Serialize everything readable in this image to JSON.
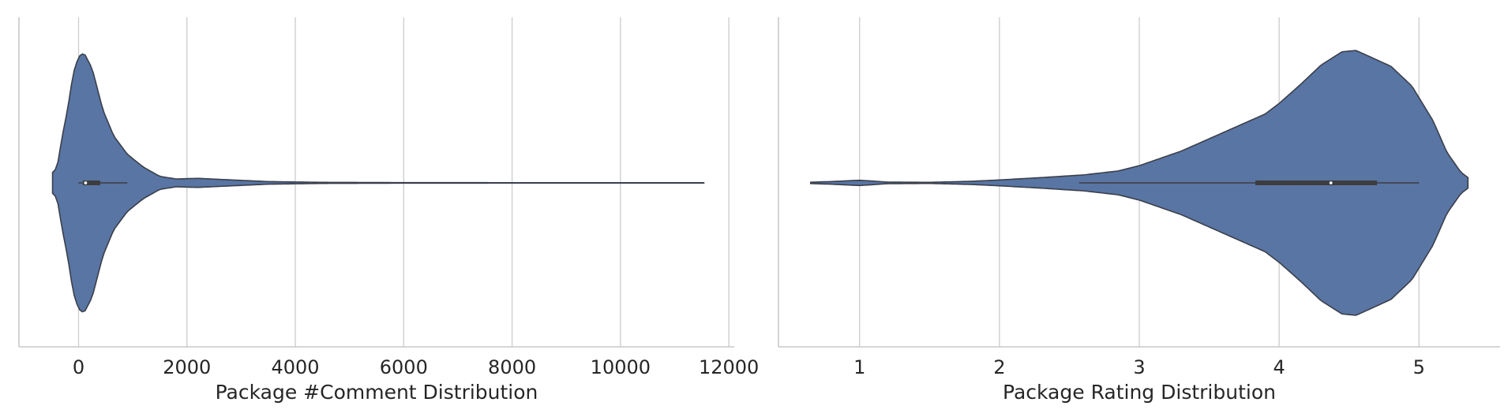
{
  "chart_data": [
    {
      "type": "violin",
      "orientation": "horizontal",
      "xlabel": "Package #Comment Distribution",
      "ylabel": "",
      "xlim": [
        -1100,
        12100
      ],
      "xticks": [
        0,
        2000,
        4000,
        6000,
        8000,
        10000,
        12000
      ],
      "xtick_labels": [
        "0",
        "2000",
        "4000",
        "6000",
        "8000",
        "10000",
        "12000"
      ],
      "grid": "vertical",
      "color": "#5875a4",
      "box": {
        "min": 0,
        "q1": 80,
        "median": 130,
        "q3": 400,
        "whisker_high": 900
      },
      "data_range": [
        -480,
        11540
      ],
      "density_profile": [
        [
          -480,
          0.08
        ],
        [
          -440,
          0.09
        ],
        [
          -380,
          0.16
        ],
        [
          -300,
          0.36
        ],
        [
          -200,
          0.57
        ],
        [
          -100,
          0.84
        ],
        [
          0,
          0.97
        ],
        [
          100,
          1.0
        ],
        [
          250,
          0.88
        ],
        [
          450,
          0.56
        ],
        [
          650,
          0.36
        ],
        [
          900,
          0.22
        ],
        [
          1200,
          0.12
        ],
        [
          1500,
          0.05
        ],
        [
          1800,
          0.03
        ],
        [
          2200,
          0.035
        ],
        [
          2700,
          0.025
        ],
        [
          3500,
          0.01
        ],
        [
          4500,
          0.004
        ],
        [
          6000,
          0.002
        ],
        [
          8000,
          0.0015
        ],
        [
          10000,
          0.0012
        ],
        [
          11540,
          0.0012
        ]
      ]
    },
    {
      "type": "violin",
      "orientation": "horizontal",
      "xlabel": "Package Rating Distribution",
      "ylabel": "",
      "xlim": [
        0.42,
        5.58
      ],
      "xticks": [
        1,
        2,
        3,
        4,
        5
      ],
      "xtick_labels": [
        "1",
        "2",
        "3",
        "4",
        "5"
      ],
      "grid": "vertical",
      "color": "#5875a4",
      "box": {
        "whisker_low": 2.57,
        "q1": 3.83,
        "median": 4.37,
        "q3": 4.7,
        "whisker_high": 5.0
      },
      "data_range": [
        0.65,
        5.35
      ],
      "density_profile": [
        [
          0.65,
          0.005
        ],
        [
          0.8,
          0.01
        ],
        [
          1.0,
          0.02
        ],
        [
          1.2,
          0.006
        ],
        [
          1.5,
          0.004
        ],
        [
          1.8,
          0.012
        ],
        [
          2.0,
          0.022
        ],
        [
          2.3,
          0.04
        ],
        [
          2.6,
          0.06
        ],
        [
          2.85,
          0.09
        ],
        [
          3.0,
          0.13
        ],
        [
          3.3,
          0.24
        ],
        [
          3.6,
          0.38
        ],
        [
          3.9,
          0.52
        ],
        [
          4.0,
          0.6
        ],
        [
          4.15,
          0.74
        ],
        [
          4.3,
          0.89
        ],
        [
          4.45,
          0.99
        ],
        [
          4.55,
          1.0
        ],
        [
          4.8,
          0.88
        ],
        [
          4.95,
          0.73
        ],
        [
          5.1,
          0.47
        ],
        [
          5.2,
          0.23
        ],
        [
          5.3,
          0.08
        ],
        [
          5.35,
          0.04
        ]
      ]
    }
  ]
}
